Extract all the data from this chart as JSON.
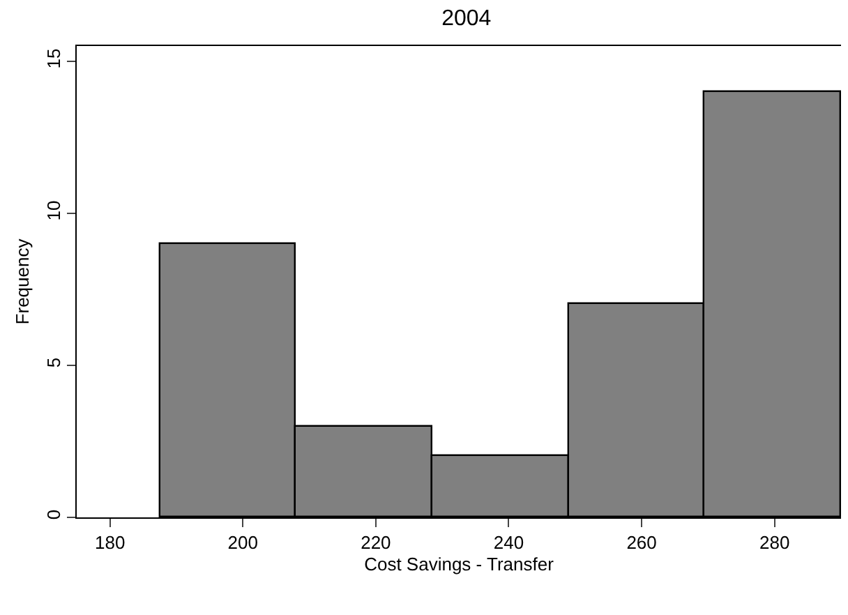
{
  "chart_data": {
    "type": "histogram",
    "title": "2004",
    "xlabel": "Cost Savings - Transfer",
    "ylabel": "Frequency",
    "bins": [
      187.5,
      208,
      228.5,
      249,
      269.5,
      290
    ],
    "values": [
      9,
      3,
      2,
      7,
      14
    ],
    "color": "#808080",
    "xlim": [
      175,
      290
    ],
    "xticks": [
      180,
      200,
      220,
      240,
      260,
      280
    ],
    "ylim": [
      0,
      15.5
    ],
    "yticks": [
      0,
      5,
      10,
      15
    ],
    "grid": false
  }
}
